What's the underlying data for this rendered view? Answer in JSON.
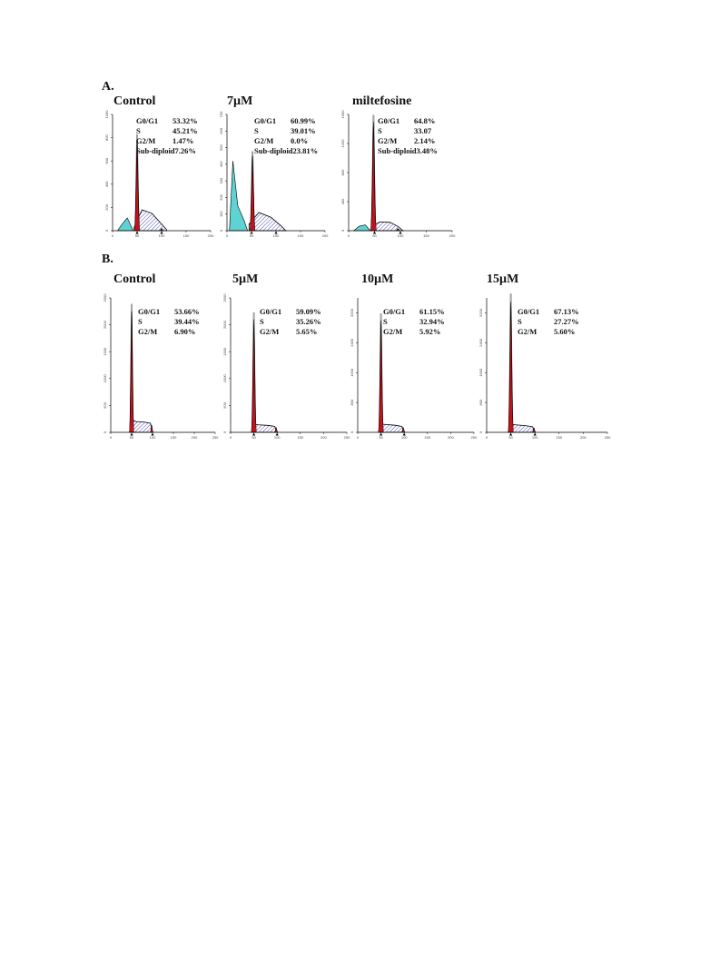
{
  "sections": [
    {
      "label": "A.",
      "panels": [
        {
          "title": "Control",
          "stats": [
            {
              "name": "G0/G1",
              "value": "53.32%"
            },
            {
              "name": "S",
              "value": "45.21%"
            },
            {
              "name": "G2/M",
              "value": "1.47%"
            },
            {
              "name": "Sub-diploid",
              "value": "7.26%"
            }
          ]
        },
        {
          "title": "7µM",
          "stats": [
            {
              "name": "G0/G1",
              "value": "60.99%"
            },
            {
              "name": "S",
              "value": "39.01%"
            },
            {
              "name": "G2/M",
              "value": "0.0%"
            },
            {
              "name": "Sub-diploid",
              "value": "23.81%"
            }
          ]
        },
        {
          "title": "miltefosine",
          "stats": [
            {
              "name": "G0/G1",
              "value": "64.8%"
            },
            {
              "name": "S",
              "value": "33.07"
            },
            {
              "name": "G2/M",
              "value": "2.14%"
            },
            {
              "name": "Sub-diploid",
              "value": "3.48%"
            }
          ]
        }
      ]
    },
    {
      "label": "B.",
      "panels": [
        {
          "title": "Control",
          "stats": [
            {
              "name": "G0/G1",
              "value": "53.66%"
            },
            {
              "name": "S",
              "value": "39.44%"
            },
            {
              "name": "G2/M",
              "value": "6.90%"
            }
          ]
        },
        {
          "title": "5µM",
          "stats": [
            {
              "name": "G0/G1",
              "value": "59.09%"
            },
            {
              "name": "S",
              "value": "35.26%"
            },
            {
              "name": "G2/M",
              "value": "5.65%"
            }
          ]
        },
        {
          "title": "10µM",
          "stats": [
            {
              "name": "G0/G1",
              "value": "61.15%"
            },
            {
              "name": "S",
              "value": "32.94%"
            },
            {
              "name": "G2/M",
              "value": "5.92%"
            }
          ]
        },
        {
          "title": "15µM",
          "stats": [
            {
              "name": "G0/G1",
              "value": "67.13%"
            },
            {
              "name": "S",
              "value": "27.27%"
            },
            {
              "name": "G2/M",
              "value": "5.60%"
            }
          ]
        }
      ]
    }
  ],
  "colors": {
    "g1_peak": "#c0141c",
    "sub_diploid": "#5fd3d3",
    "s_phase_hatch": "#3a3aa8",
    "raw_trace": "#b8b8b8",
    "outline": "#000000"
  },
  "chart_data": [
    {
      "type": "area",
      "panel": "A-Control",
      "xlim": [
        0,
        200
      ],
      "xticks": [
        0,
        50,
        100,
        150,
        200
      ],
      "ylim": [
        0,
        1000
      ],
      "yticks": [
        0,
        200,
        400,
        600,
        800,
        1000
      ],
      "x_axis_markers": [
        50,
        100
      ],
      "sub_diploid": {
        "x": [
          10,
          20,
          30,
          42
        ],
        "y": [
          0,
          60,
          110,
          0
        ]
      },
      "g1_peak": {
        "center": 50,
        "height": 780
      },
      "s_phase": {
        "x": [
          44,
          60,
          80,
          95,
          110
        ],
        "y": [
          30,
          180,
          150,
          80,
          10
        ]
      },
      "g2m_peak": {
        "center": 100,
        "height": 20
      }
    },
    {
      "type": "area",
      "panel": "A-7µM",
      "xlim": [
        0,
        200
      ],
      "xticks": [
        0,
        50,
        100,
        150,
        200
      ],
      "ylim": [
        0,
        700
      ],
      "yticks": [
        0,
        100,
        200,
        300,
        400,
        500,
        600,
        700
      ],
      "x_axis_markers": [
        50,
        100
      ],
      "sub_diploid": {
        "x": [
          5,
          12,
          22,
          35,
          42
        ],
        "y": [
          0,
          420,
          150,
          60,
          0
        ]
      },
      "g1_peak": {
        "center": 52,
        "height": 450
      },
      "s_phase": {
        "x": [
          45,
          65,
          90,
          110,
          120
        ],
        "y": [
          40,
          110,
          80,
          30,
          0
        ]
      },
      "g2m_peak": {
        "center": 100,
        "height": 0
      }
    },
    {
      "type": "area",
      "panel": "A-miltefosine",
      "xlim": [
        0,
        200
      ],
      "xticks": [
        0,
        50,
        100,
        150,
        200
      ],
      "ylim": [
        0,
        1600
      ],
      "yticks": [
        0,
        400,
        800,
        1200,
        1600
      ],
      "x_axis_markers": [
        50,
        100
      ],
      "sub_diploid": {
        "x": [
          10,
          20,
          32,
          42
        ],
        "y": [
          0,
          60,
          80,
          0
        ]
      },
      "g1_peak": {
        "center": 48,
        "height": 1500
      },
      "s_phase": {
        "x": [
          45,
          60,
          80,
          95,
          105
        ],
        "y": [
          60,
          120,
          115,
          60,
          0
        ]
      },
      "g2m_peak": {
        "center": 95,
        "height": 30
      }
    },
    {
      "type": "area",
      "panel": "B-Control",
      "xlim": [
        0,
        250
      ],
      "xticks": [
        0,
        50,
        100,
        150,
        200,
        250
      ],
      "ylim": [
        0,
        2500
      ],
      "yticks": [
        0,
        500,
        1000,
        1500,
        2000,
        2500
      ],
      "x_axis_markers": [
        50,
        100
      ],
      "g1_peak": {
        "center": 50,
        "height": 2250
      },
      "s_phase": {
        "x": [
          52,
          60,
          80,
          95,
          100
        ],
        "y": [
          230,
          200,
          190,
          170,
          0
        ]
      },
      "g2m_peak": {
        "center": 98,
        "height": 130
      }
    },
    {
      "type": "area",
      "panel": "B-5µM",
      "xlim": [
        0,
        250
      ],
      "xticks": [
        0,
        50,
        100,
        150,
        200,
        250
      ],
      "ylim": [
        0,
        2500
      ],
      "yticks": [
        0,
        500,
        1000,
        1500,
        2000,
        2500
      ],
      "x_axis_markers": [
        50,
        100
      ],
      "g1_peak": {
        "center": 50,
        "height": 2100
      },
      "s_phase": {
        "x": [
          52,
          60,
          80,
          95,
          100
        ],
        "y": [
          150,
          140,
          130,
          110,
          0
        ]
      },
      "g2m_peak": {
        "center": 98,
        "height": 90
      }
    },
    {
      "type": "area",
      "panel": "B-10µM",
      "xlim": [
        0,
        250
      ],
      "xticks": [
        0,
        50,
        100,
        150,
        200,
        250
      ],
      "ylim": [
        0,
        3600
      ],
      "yticks": [
        0,
        800,
        1600,
        2400,
        3200
      ],
      "x_axis_markers": [
        50,
        100
      ],
      "g1_peak": {
        "center": 50,
        "height": 3000
      },
      "s_phase": {
        "x": [
          52,
          60,
          80,
          95,
          100
        ],
        "y": [
          220,
          210,
          190,
          160,
          0
        ]
      },
      "g2m_peak": {
        "center": 98,
        "height": 130
      }
    },
    {
      "type": "area",
      "panel": "B-15µM",
      "xlim": [
        0,
        250
      ],
      "xticks": [
        0,
        50,
        100,
        150,
        200,
        250
      ],
      "ylim": [
        0,
        3600
      ],
      "yticks": [
        0,
        800,
        1600,
        2400,
        3200
      ],
      "x_axis_markers": [
        50,
        100
      ],
      "g1_peak": {
        "center": 50,
        "height": 3500
      },
      "s_phase": {
        "x": [
          52,
          60,
          80,
          95,
          100
        ],
        "y": [
          210,
          200,
          180,
          150,
          0
        ]
      },
      "g2m_peak": {
        "center": 98,
        "height": 120
      }
    }
  ]
}
